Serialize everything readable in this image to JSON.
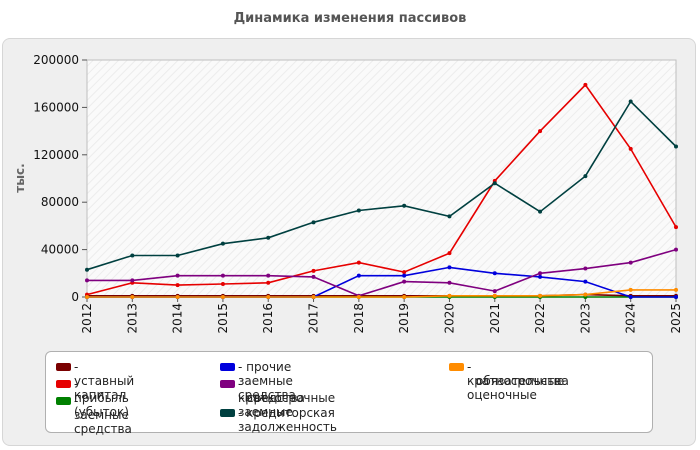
{
  "chart_data": {
    "type": "line",
    "title": "Динамика изменения пассивов",
    "ylabel": "тыс.",
    "xlabel": "",
    "x": [
      "2012",
      "2013",
      "2014",
      "2015",
      "2016",
      "2017",
      "2018",
      "2019",
      "2020",
      "2021",
      "2022",
      "2023",
      "2024",
      "2025"
    ],
    "ylim": [
      0,
      200000
    ],
    "yticks": [
      0,
      40000,
      80000,
      120000,
      160000,
      200000
    ],
    "ytick_labels": [
      "0",
      "40000",
      "80000",
      "120000",
      "160000",
      "200000"
    ],
    "grid": "none",
    "legend_position": "bottom",
    "series": [
      {
        "name": "уставный капитал",
        "color": "#7a0000",
        "values": [
          1000,
          1000,
          1000,
          1000,
          1000,
          1000,
          1000,
          1000,
          1000,
          1000,
          1000,
          2000,
          1000,
          1000
        ]
      },
      {
        "name": "прибыль (убыток)",
        "color": "#e60000",
        "values": [
          2000,
          12000,
          10000,
          11000,
          12000,
          22000,
          29000,
          21000,
          37000,
          98000,
          140000,
          179000,
          125000,
          59000
        ]
      },
      {
        "name": "заемные средства",
        "color": "#008000",
        "values": [
          0,
          0,
          0,
          0,
          0,
          0,
          0,
          0,
          0,
          0,
          0,
          0,
          0,
          0
        ]
      },
      {
        "name": "прочие заемные средства",
        "color": "#0000dd",
        "values": [
          0,
          0,
          0,
          0,
          0,
          0,
          18000,
          18000,
          25000,
          20000,
          17000,
          13000,
          0,
          0
        ]
      },
      {
        "name": "краткосрочные заемные средства",
        "color": "#7f007f",
        "values": [
          14000,
          14000,
          18000,
          18000,
          18000,
          17000,
          1000,
          13000,
          12000,
          5000,
          20000,
          24000,
          29000,
          40000
        ]
      },
      {
        "name": "кредиторская задолженность",
        "color": "#004040",
        "values": [
          23000,
          35000,
          35000,
          45000,
          50000,
          63000,
          73000,
          77000,
          68000,
          96000,
          72000,
          102000,
          165000,
          127000
        ]
      },
      {
        "name": "краткосрочные оценочные обязательства",
        "color": "#ff8c00",
        "values": [
          0,
          0,
          0,
          0,
          0,
          0,
          0,
          0,
          1000,
          1000,
          1000,
          2000,
          6000,
          6000
        ]
      }
    ]
  },
  "legend": {
    "items": [
      {
        "label": "- уставный капитал",
        "color": "#7a0000"
      },
      {
        "label": "- прибыль (убыток)",
        "color": "#e60000"
      },
      {
        "label": "- заемные средства",
        "color": "#008000"
      },
      {
        "label": "- прочие заемные средства",
        "color": "#0000dd"
      },
      {
        "label": "- краткосрочные заемные",
        "label2": "средства",
        "color": "#7f007f"
      },
      {
        "label": "- кредиторская задолженность",
        "color": "#004040"
      },
      {
        "label": "- краткосрочные оценочные",
        "label2": "обязательства",
        "color": "#ff8c00"
      }
    ]
  }
}
